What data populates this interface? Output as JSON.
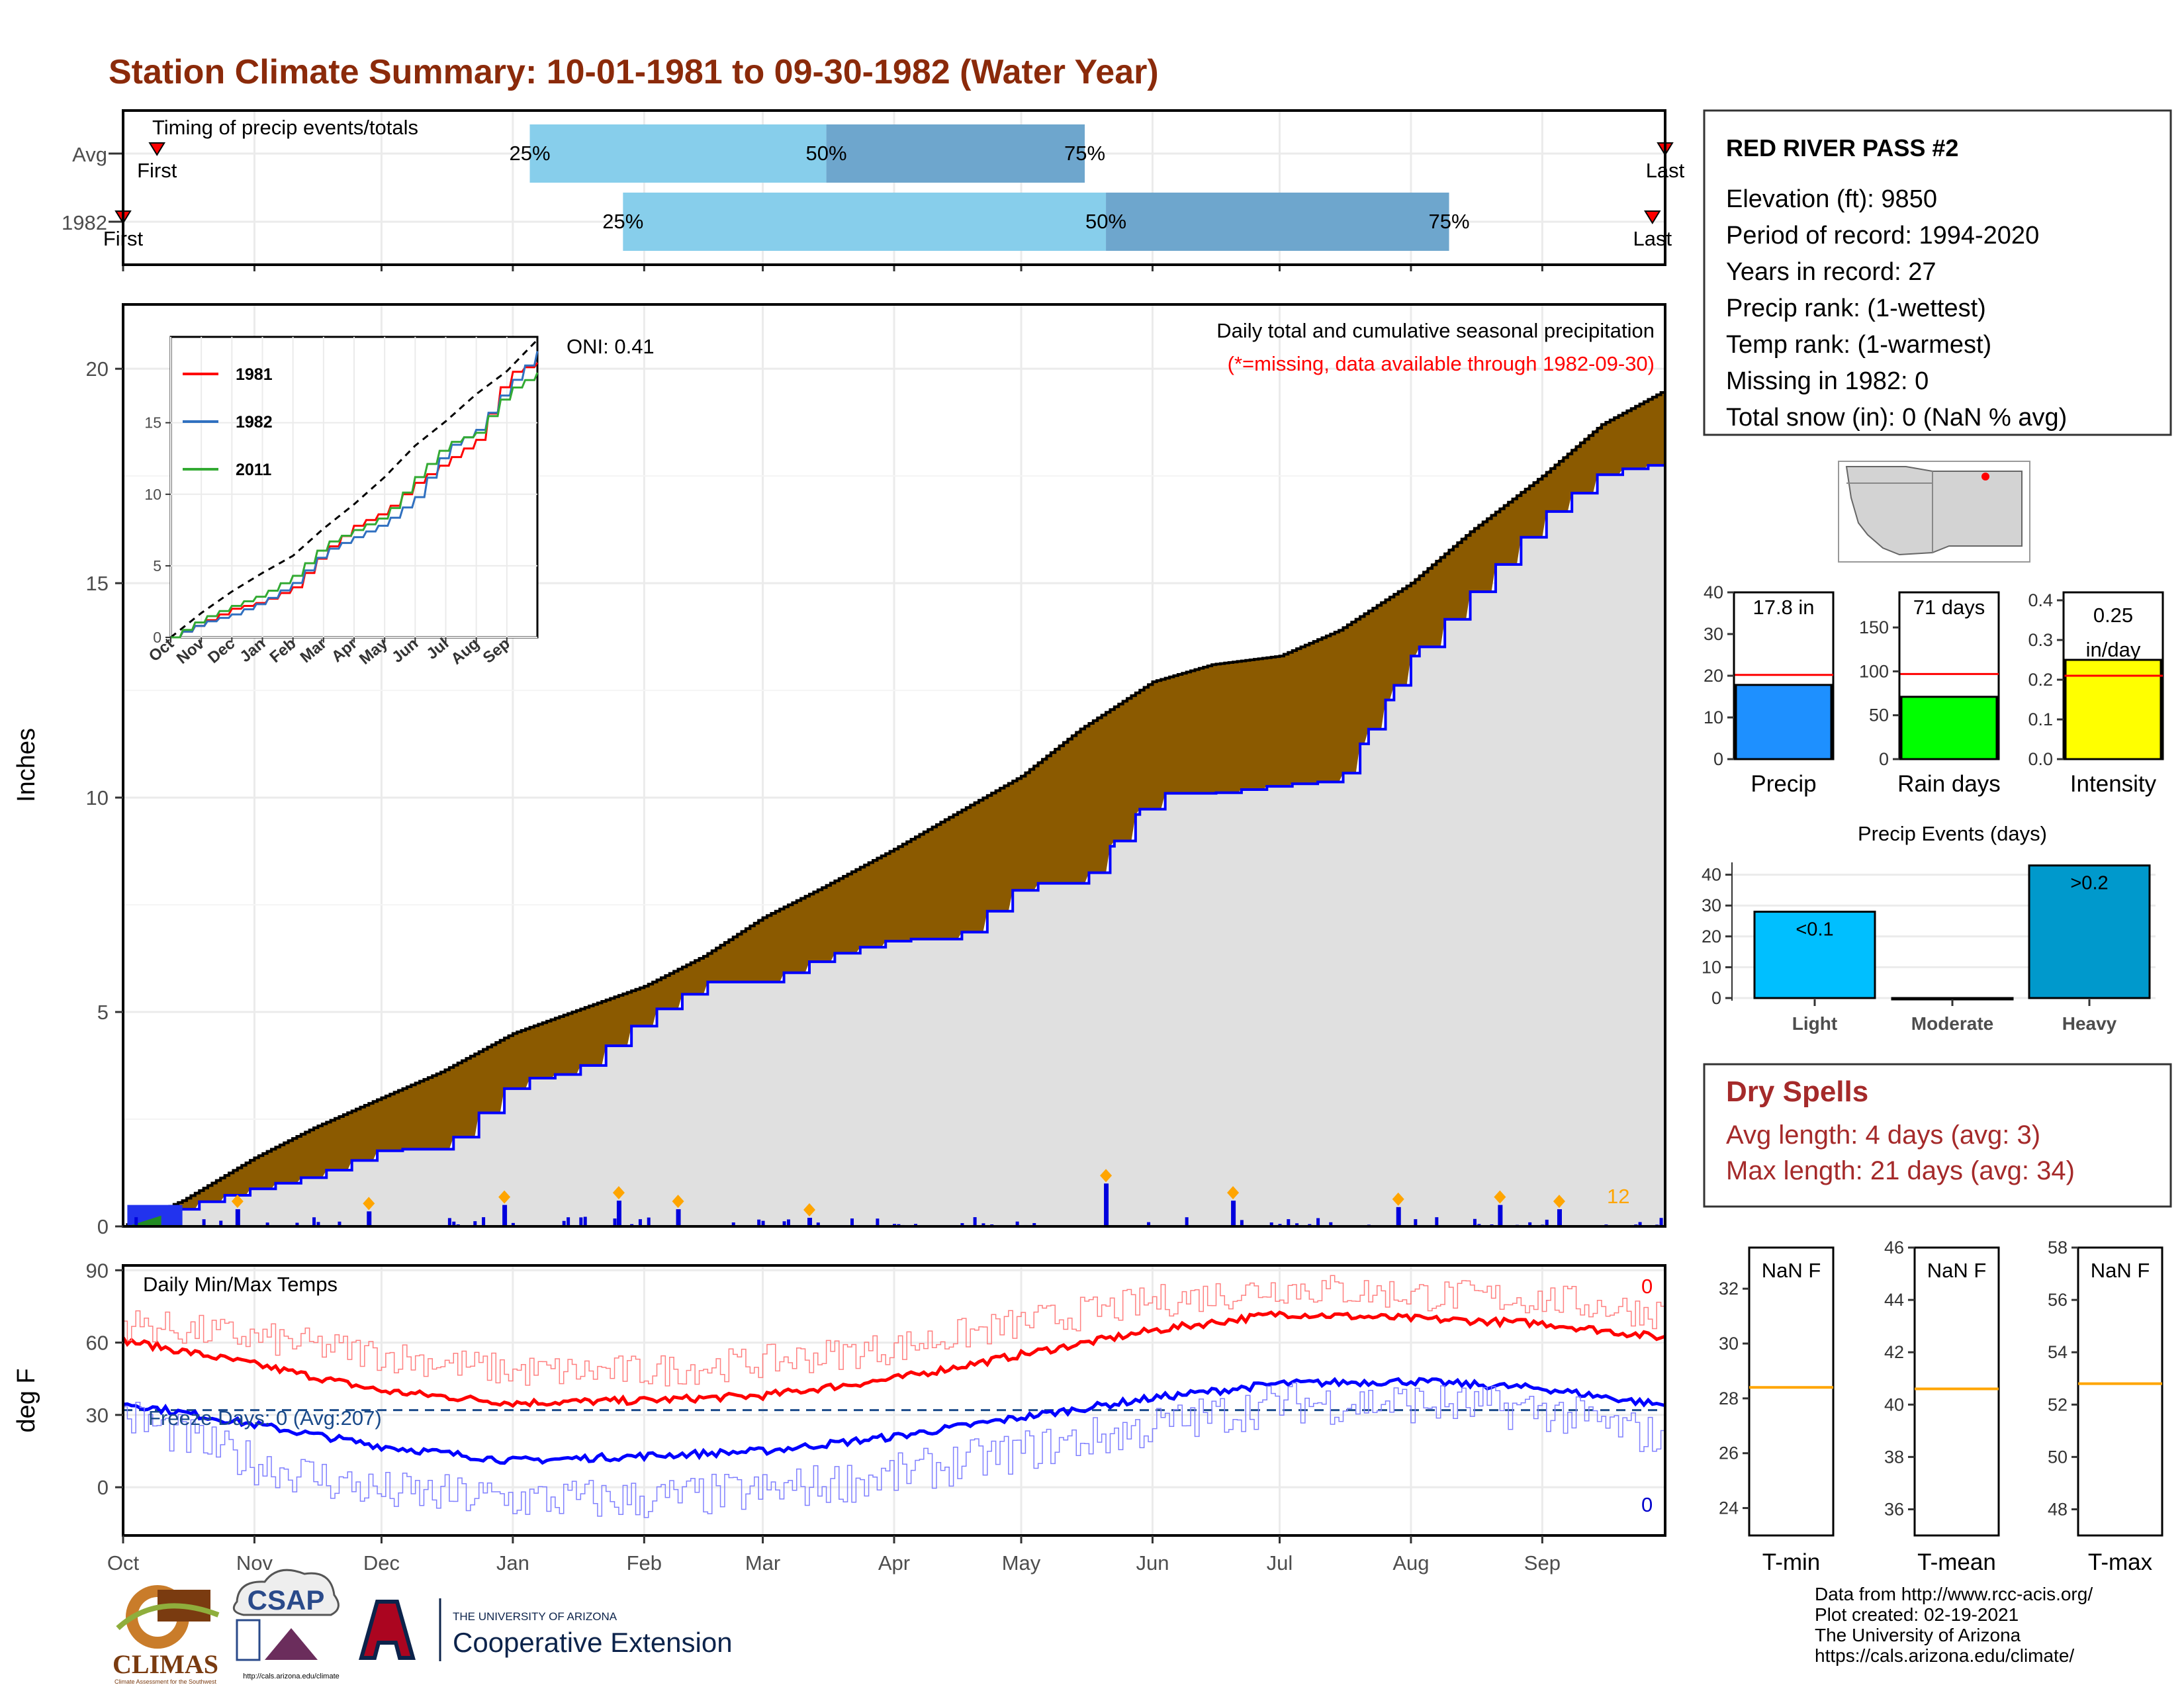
{
  "title": "Station Climate Summary: 10-01-1981 to 09-30-1982 (Water Year)",
  "colors": {
    "title": "#8b2a0a",
    "red": "#ff0000",
    "blue": "#0000ff",
    "brown": "#8b5a00",
    "light_gray": "#e0e0e0",
    "sky": "#87ceeb",
    "steel": "#6ea6cd",
    "dry_spell": "#a52a2a",
    "orange": "#ffa500",
    "green": "#00ff00",
    "yellow": "#ffff00",
    "precip_blue": "#1e90ff",
    "light_blue": "#00bfff",
    "heavy_blue": "#0099cc"
  },
  "timing_panel": {
    "title": "Timing of precip events/totals",
    "rows": [
      {
        "label": "Avg",
        "first_label": "First",
        "last_label": "Last",
        "first_date": "1981-10-09",
        "last_date": "1982-09-30",
        "q25": "1982-01-05",
        "q50": "1982-03-16",
        "q75": "1982-05-16"
      },
      {
        "label": "1982",
        "first_label": "First",
        "last_label": "Last",
        "first_date": "1981-10-01",
        "last_date": "1982-09-27",
        "q25": "1982-01-27",
        "q50": "1982-05-21",
        "q75": "1982-08-10"
      }
    ],
    "pct_labels": [
      "25%",
      "50%",
      "75%"
    ]
  },
  "precip_panel": {
    "y_label": "Inches",
    "note_title": "Daily total and cumulative seasonal precipitation",
    "note_missing": "(*=missing, data available through 1982-09-30)",
    "oni": "ONI: 0.41",
    "count_label": "12"
  },
  "temp_panel": {
    "y_label": "deg F",
    "title": "Daily Min/Max Temps",
    "freeze": "Freeze Days: 0 (Avg:207)",
    "max_count": "0",
    "min_count": "0"
  },
  "month_labels": [
    "Oct",
    "Nov",
    "Dec",
    "Jan",
    "Feb",
    "Mar",
    "Apr",
    "May",
    "Jun",
    "Jul",
    "Aug",
    "Sep"
  ],
  "inset_month_labels": [
    "Oct",
    "Nov",
    "Dec",
    "Jan",
    "Feb",
    "Mar",
    "Apr",
    "May",
    "Jun",
    "Jul",
    "Aug",
    "Sep"
  ],
  "inset": {
    "legend": [
      {
        "name": "1981",
        "color": "#ff0000"
      },
      {
        "name": "1982",
        "color": "#3070c0"
      },
      {
        "name": "2011",
        "color": "#33aa33"
      }
    ]
  },
  "info_box": {
    "station": "RED RIVER PASS #2",
    "lines": [
      "Elevation (ft): 9850",
      "Period of record: 1994-2020",
      "Years in record: 27",
      "Precip rank:  (1-wettest)",
      "Temp rank:  (1-warmest)",
      "Missing in 1982: 0",
      "Total snow (in): 0 (NaN % avg)"
    ]
  },
  "summary_bars": [
    {
      "name": "Precip",
      "value": 17.8,
      "avg": 20.2,
      "label": "17.8 in",
      "ymax": 40,
      "ticks": [
        0,
        10,
        20,
        30,
        40
      ],
      "color": "#1e90ff"
    },
    {
      "name": "Rain days",
      "value": 71,
      "avg": 97,
      "label": "71 days",
      "ymax": 190,
      "ticks": [
        0,
        50,
        100,
        150
      ],
      "color": "#00ff00"
    },
    {
      "name": "Intensity",
      "value": 0.25,
      "avg": 0.21,
      "label_top": "0.25",
      "label_bottom": "in/day",
      "ymax": 0.42,
      "ticks": [
        "0.0",
        "0.1",
        "0.2",
        "0.3",
        "0.4"
      ],
      "color": "#ffff00"
    }
  ],
  "precip_events": {
    "title": "Precip Events (days)",
    "categories": [
      "Light",
      "Moderate",
      "Heavy"
    ],
    "values": [
      28,
      0,
      43
    ],
    "bar_labels": [
      "<0.1",
      "",
      ">0.2"
    ],
    "colors": [
      "#00bfff",
      "#00bfff",
      "#0099cc"
    ],
    "ticks": [
      0,
      10,
      20,
      30,
      40
    ]
  },
  "dry_spells": {
    "title": "Dry Spells",
    "avg_length": "Avg length: 4 days (avg: 3)",
    "max_length": "Max length: 21 days (avg: 34)"
  },
  "temp_boxes": [
    {
      "name": "T-min",
      "label": "NaN F",
      "ticks": [
        24,
        26,
        28,
        30,
        32
      ],
      "min": 23,
      "max": 33.5,
      "avg": 28.4
    },
    {
      "name": "T-mean",
      "label": "NaN F",
      "ticks": [
        36,
        38,
        40,
        42,
        44,
        46
      ],
      "min": 35,
      "max": 46,
      "avg": 40.6
    },
    {
      "name": "T-max",
      "label": "NaN F",
      "ticks": [
        48,
        50,
        52,
        54,
        56,
        58
      ],
      "min": 47,
      "max": 58,
      "avg": 52.8
    }
  ],
  "footer": {
    "lines": [
      "Data from http://www.rcc-acis.org/",
      "Plot created: 02-19-2021",
      "The University of Arizona",
      "https://cals.arizona.edu/climate/"
    ]
  },
  "logos": {
    "climas": "CLIMAS",
    "climas_sub": "Climate Assessment for the Southwest",
    "csap": "CSAP",
    "csap_url": "http://cals.arizona.edu/climate",
    "ua_top": "THE UNIVERSITY OF ARIZONA",
    "ua_bottom": "Cooperative Extension"
  },
  "chart_data": [
    {
      "type": "area",
      "title": "Daily total and cumulative seasonal precipitation",
      "ylabel": "Inches",
      "x_range": [
        "1981-10-01",
        "1982-09-30"
      ],
      "ylim": [
        0,
        21.5
      ],
      "series": [
        {
          "name": "average cumulative",
          "x": [
            "1981-10-01",
            "1981-10-15",
            "1981-11-01",
            "1981-11-15",
            "1981-12-01",
            "1981-12-15",
            "1982-01-01",
            "1982-01-15",
            "1982-02-01",
            "1982-02-15",
            "1982-03-01",
            "1982-03-15",
            "1982-04-01",
            "1982-04-15",
            "1982-05-01",
            "1982-05-15",
            "1982-06-01",
            "1982-06-15",
            "1982-07-01",
            "1982-07-15",
            "1982-08-01",
            "1982-08-15",
            "1982-09-01",
            "1982-09-15",
            "1982-09-30"
          ],
          "y": [
            0,
            0.6,
            1.6,
            2.3,
            3.0,
            3.6,
            4.5,
            5.0,
            5.6,
            6.3,
            7.2,
            7.9,
            8.8,
            9.6,
            10.5,
            11.6,
            12.7,
            13.1,
            13.3,
            13.9,
            15.0,
            16.2,
            17.5,
            18.7,
            19.5
          ]
        },
        {
          "name": "1982 cumulative",
          "x": [
            "1981-10-01",
            "1981-10-16",
            "1981-11-01",
            "1981-11-15",
            "1981-12-01",
            "1981-12-15",
            "1982-01-01",
            "1982-01-15",
            "1982-02-01",
            "1982-02-15",
            "1982-03-01",
            "1982-03-15",
            "1982-04-01",
            "1982-04-15",
            "1982-05-01",
            "1982-05-15",
            "1982-06-01",
            "1982-06-15",
            "1982-07-01",
            "1982-07-15",
            "1982-08-01",
            "1982-08-15",
            "1982-09-01",
            "1982-09-15",
            "1982-09-30"
          ],
          "y": [
            0,
            0.5,
            0.9,
            1.2,
            1.8,
            1.8,
            3.4,
            3.6,
            4.9,
            5.7,
            5.7,
            6.3,
            6.7,
            6.7,
            8.0,
            8.0,
            10.1,
            10.1,
            10.3,
            10.4,
            13.3,
            14.8,
            16.6,
            17.6,
            17.8
          ]
        }
      ],
      "daily_bars_in": {
        "dates": [
          "1981-10-28",
          "1981-11-28",
          "1981-12-30",
          "1982-01-26",
          "1982-02-09",
          "1982-03-12",
          "1982-05-21",
          "1982-06-20",
          "1982-07-29",
          "1982-08-22",
          "1982-09-05"
        ],
        "values": [
          0.4,
          0.35,
          0.5,
          0.6,
          0.4,
          0.2,
          1.0,
          0.6,
          0.45,
          0.5,
          0.4
        ]
      }
    },
    {
      "type": "line",
      "title": "Daily Min/Max Temps",
      "ylabel": "deg F",
      "ylim": [
        -20,
        92
      ],
      "freeze_line": 32,
      "series": [
        {
          "name": "avg max",
          "x": [
            "1981-10-01",
            "1981-11-01",
            "1981-12-01",
            "1982-01-01",
            "1982-02-01",
            "1982-03-01",
            "1982-04-01",
            "1982-05-01",
            "1982-06-01",
            "1982-07-01",
            "1982-08-01",
            "1982-09-01",
            "1982-09-30"
          ],
          "y": [
            61,
            51,
            40,
            35,
            36,
            38,
            45,
            55,
            65,
            72,
            70,
            68,
            62
          ]
        },
        {
          "name": "avg min",
          "x": [
            "1981-10-01",
            "1981-11-01",
            "1981-12-01",
            "1982-01-01",
            "1982-02-01",
            "1982-03-01",
            "1982-04-01",
            "1982-05-01",
            "1982-06-01",
            "1982-07-01",
            "1982-08-01",
            "1982-09-01",
            "1982-09-30"
          ],
          "y": [
            35,
            26,
            17,
            11,
            13,
            15,
            21,
            29,
            37,
            43,
            44,
            41,
            34
          ]
        },
        {
          "name": "daily max",
          "x": [
            "1981-10-01",
            "1981-11-01",
            "1981-12-01",
            "1982-01-01",
            "1982-02-01",
            "1982-03-01",
            "1982-04-01",
            "1982-05-01",
            "1982-06-01",
            "1982-07-01",
            "1982-08-01",
            "1982-09-01",
            "1982-09-30"
          ],
          "y": [
            68,
            62,
            55,
            48,
            48,
            52,
            58,
            68,
            77,
            83,
            80,
            78,
            72
          ]
        },
        {
          "name": "daily min",
          "x": [
            "1981-10-01",
            "1981-11-01",
            "1981-12-01",
            "1982-01-01",
            "1982-02-01",
            "1982-03-01",
            "1982-04-01",
            "1982-05-01",
            "1982-06-01",
            "1982-07-01",
            "1982-08-01",
            "1982-09-01",
            "1982-09-30"
          ],
          "y": [
            30,
            10,
            -2,
            -5,
            -5,
            -2,
            5,
            15,
            25,
            35,
            35,
            32,
            20
          ]
        }
      ]
    },
    {
      "type": "line",
      "ylim": [
        0,
        21
      ],
      "series": [
        {
          "name": "avg",
          "x": [
            0,
            1,
            2,
            3,
            4,
            5,
            6,
            7,
            8,
            9,
            10,
            11,
            12
          ],
          "y": [
            0,
            1.7,
            3.2,
            4.5,
            5.7,
            7.6,
            9.3,
            11.2,
            13.4,
            15.1,
            17.0,
            18.6,
            20.8
          ]
        },
        {
          "name": "1981",
          "x": [
            0,
            1,
            2,
            3,
            4,
            5,
            6,
            7,
            8,
            9,
            10,
            11,
            12
          ],
          "y": [
            0,
            1.0,
            2.0,
            2.5,
            3.5,
            6.0,
            7.8,
            8.8,
            10.8,
            12.3,
            13.8,
            18.4,
            19.2
          ]
        },
        {
          "name": "1982",
          "x": [
            0,
            1,
            2,
            3,
            4,
            5,
            6,
            7,
            8,
            9,
            10,
            11,
            12
          ],
          "y": [
            0,
            1.0,
            1.6,
            2.5,
            3.8,
            6.0,
            7.0,
            8.0,
            9.8,
            13.2,
            14.5,
            17.5,
            20.0
          ]
        },
        {
          "name": "2011",
          "x": [
            0,
            1,
            2,
            3,
            4,
            5,
            6,
            7,
            8,
            9,
            10,
            11,
            12
          ],
          "y": [
            0,
            1.3,
            2.2,
            3.0,
            4.3,
            6.5,
            7.5,
            8.5,
            11.2,
            13.5,
            14.3,
            17.2,
            18.5
          ]
        }
      ]
    }
  ]
}
